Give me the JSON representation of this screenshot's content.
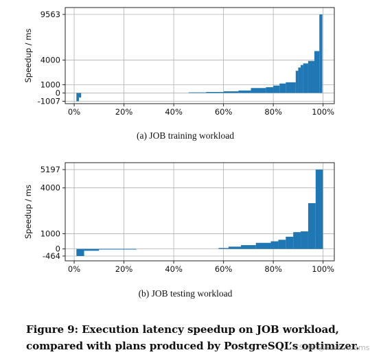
{
  "chart_data": [
    {
      "type": "bar",
      "subtitle": "(a)  JOB training workload",
      "ylabel": "Speedup / ms",
      "xlabel": "",
      "x_ticks": [
        "0%",
        "20%",
        "40%",
        "60%",
        "80%",
        "100%"
      ],
      "x_tick_values": [
        0,
        20,
        40,
        60,
        80,
        100
      ],
      "y_ticks": [
        "9563",
        "4000",
        "1000",
        "0",
        "-1007"
      ],
      "y_tick_values": [
        9563,
        4000,
        1000,
        0,
        -1007
      ],
      "xlim": [
        -3.6,
        104.5
      ],
      "ylim": [
        -1300,
        10400
      ],
      "grid": true,
      "color": "#1f77b4",
      "bars": [
        {
          "x0": 0.9,
          "x1": 1.9,
          "y": -1007
        },
        {
          "x0": 1.9,
          "x1": 2.8,
          "y": -550
        },
        {
          "x0": 46,
          "x1": 53,
          "y": 70
        },
        {
          "x0": 53,
          "x1": 60,
          "y": 120
        },
        {
          "x0": 60,
          "x1": 66,
          "y": 200
        },
        {
          "x0": 66,
          "x1": 71,
          "y": 300
        },
        {
          "x0": 71,
          "x1": 77,
          "y": 600
        },
        {
          "x0": 77,
          "x1": 80,
          "y": 700
        },
        {
          "x0": 80,
          "x1": 82.5,
          "y": 900
        },
        {
          "x0": 82.5,
          "x1": 85,
          "y": 1150
        },
        {
          "x0": 85,
          "x1": 89,
          "y": 1300
        },
        {
          "x0": 89,
          "x1": 90,
          "y": 2700
        },
        {
          "x0": 90,
          "x1": 91,
          "y": 3100
        },
        {
          "x0": 91,
          "x1": 92,
          "y": 3400
        },
        {
          "x0": 92,
          "x1": 94,
          "y": 3600
        },
        {
          "x0": 94,
          "x1": 96.5,
          "y": 3900
        },
        {
          "x0": 96.5,
          "x1": 98.5,
          "y": 5100
        },
        {
          "x0": 98.5,
          "x1": 99.7,
          "y": 9563
        }
      ]
    },
    {
      "type": "bar",
      "subtitle": "(b)  JOB testing workload",
      "ylabel": "Speedup / ms",
      "xlabel": "",
      "x_ticks": [
        "0%",
        "20%",
        "40%",
        "60%",
        "80%",
        "100%"
      ],
      "x_tick_values": [
        0,
        20,
        40,
        60,
        80,
        100
      ],
      "y_ticks": [
        "5197",
        "4000",
        "1000",
        "0",
        "-464"
      ],
      "y_tick_values": [
        5197,
        4000,
        1000,
        0,
        -464
      ],
      "xlim": [
        -3.6,
        104.5
      ],
      "ylim": [
        -780,
        5650
      ],
      "grid": true,
      "color": "#1f77b4",
      "bars": [
        {
          "x0": 0.9,
          "x1": 4,
          "y": -464
        },
        {
          "x0": 4,
          "x1": 10,
          "y": -120
        },
        {
          "x0": 10,
          "x1": 25,
          "y": -40
        },
        {
          "x0": 58,
          "x1": 62,
          "y": 60
        },
        {
          "x0": 62,
          "x1": 67,
          "y": 150
        },
        {
          "x0": 67,
          "x1": 73,
          "y": 250
        },
        {
          "x0": 73,
          "x1": 79,
          "y": 400
        },
        {
          "x0": 79,
          "x1": 82,
          "y": 500
        },
        {
          "x0": 82,
          "x1": 85,
          "y": 600
        },
        {
          "x0": 85,
          "x1": 88,
          "y": 800
        },
        {
          "x0": 88,
          "x1": 91,
          "y": 1100
        },
        {
          "x0": 91,
          "x1": 94,
          "y": 1150
        },
        {
          "x0": 94,
          "x1": 97,
          "y": 3000
        },
        {
          "x0": 97,
          "x1": 99.9,
          "y": 5197
        }
      ]
    }
  ],
  "caption": "Figure 9: Execution latency speedup on JOB workload, compared with plans produced by PostgreSQL’s optimizer.",
  "watermark": "CSDN @Pam Adams"
}
